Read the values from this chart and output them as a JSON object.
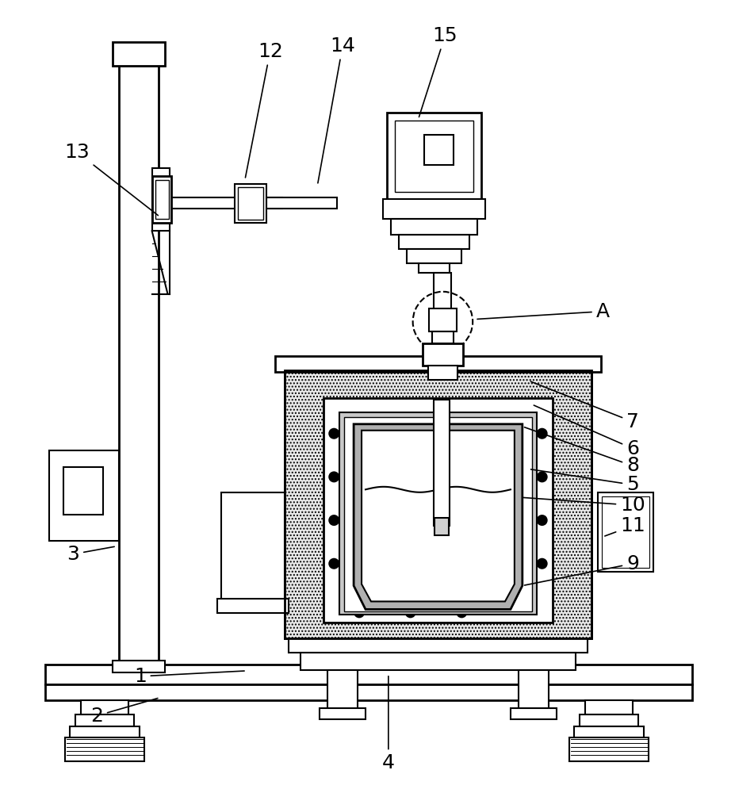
{
  "bg_color": "#ffffff",
  "lc": "#000000",
  "labels_pos": {
    "1": [
      175,
      855,
      310,
      848
    ],
    "2": [
      120,
      905,
      200,
      882
    ],
    "3": [
      90,
      700,
      145,
      690
    ],
    "4": [
      490,
      965,
      490,
      852
    ],
    "5": [
      800,
      612,
      668,
      592
    ],
    "6": [
      800,
      566,
      672,
      510
    ],
    "7": [
      800,
      532,
      668,
      480
    ],
    "8": [
      800,
      588,
      660,
      538
    ],
    "9": [
      800,
      712,
      660,
      740
    ],
    "10": [
      800,
      638,
      658,
      628
    ],
    "11": [
      800,
      664,
      762,
      678
    ],
    "12": [
      340,
      62,
      308,
      225
    ],
    "13": [
      95,
      190,
      200,
      272
    ],
    "14": [
      432,
      55,
      400,
      232
    ],
    "15": [
      562,
      42,
      528,
      148
    ],
    "A": [
      762,
      392,
      600,
      402
    ]
  }
}
